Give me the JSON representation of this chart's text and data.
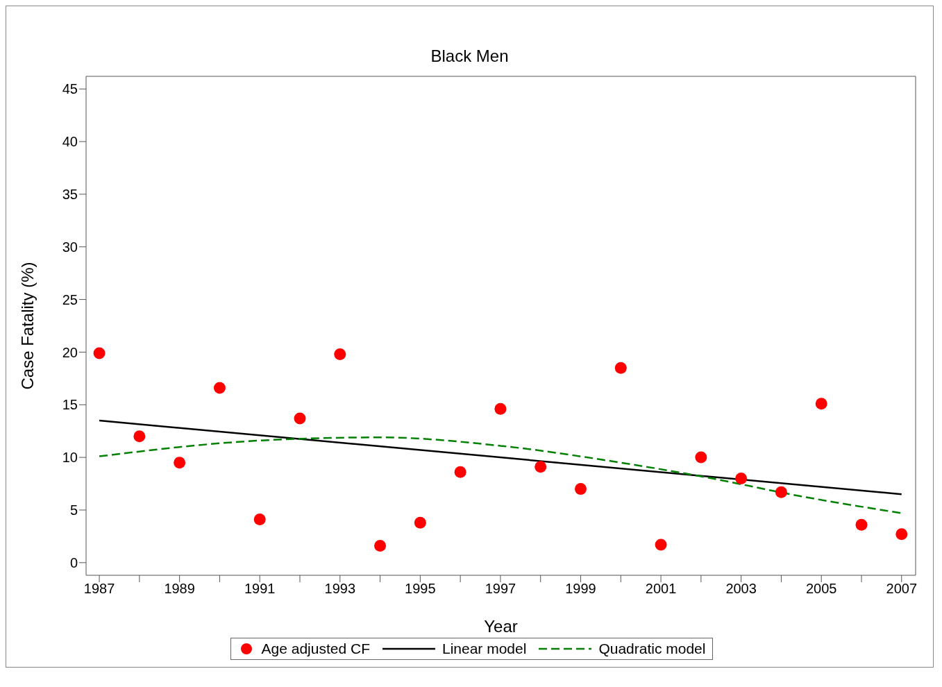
{
  "chart_data": {
    "type": "scatter",
    "title": "Black Men",
    "xlabel": "Year",
    "ylabel": "Case Fatality (%)",
    "xlim": [
      1986.67,
      2007.35
    ],
    "ylim": [
      -1.2,
      46.2
    ],
    "xticks": [
      1987,
      {
        "value": 1988,
        "label": null
      },
      1989,
      {
        "value": 1990,
        "label": null
      },
      1991,
      {
        "value": 1992,
        "label": null
      },
      1993,
      {
        "value": 1994,
        "label": null
      },
      1995,
      {
        "value": 1996,
        "label": null
      },
      1997,
      {
        "value": 1998,
        "label": null
      },
      1999,
      {
        "value": 2000,
        "label": null
      },
      2001,
      {
        "value": 2002,
        "label": null
      },
      2003,
      {
        "value": 2004,
        "label": null
      },
      2005,
      {
        "value": 2006,
        "label": null
      },
      2007
    ],
    "yticks": [
      0,
      5,
      10,
      15,
      20,
      25,
      30,
      35,
      40,
      45
    ],
    "grid": false,
    "legend": "bottom",
    "series": [
      {
        "name": "Age adjusted CF",
        "type": "scatter",
        "marker": "circle",
        "color": "#ff0000",
        "x": [
          1987,
          1988,
          1989,
          1990,
          1991,
          1992,
          1993,
          1994,
          1995,
          1996,
          1997,
          1998,
          1999,
          2000,
          2001,
          2002,
          2003,
          2004,
          2005,
          2006,
          2007
        ],
        "values": [
          19.9,
          12.0,
          9.5,
          16.6,
          4.1,
          13.7,
          19.8,
          1.6,
          3.8,
          8.6,
          14.6,
          9.1,
          7.0,
          18.5,
          1.7,
          10.0,
          8.0,
          6.7,
          15.1,
          3.6,
          2.7
        ]
      },
      {
        "name": "Linear model",
        "type": "line",
        "line_style": "solid",
        "color": "#000000",
        "x": [
          1987,
          2007
        ],
        "values": [
          13.5,
          6.5
        ]
      },
      {
        "name": "Quadratic model",
        "type": "line",
        "line_style": "dashed",
        "color": "#008000",
        "x": [
          1987,
          1991,
          1994,
          1997,
          2000,
          2002,
          2004.5,
          2007
        ],
        "values": [
          10.1,
          11.6,
          11.9,
          11.1,
          9.5,
          8.2,
          6.3,
          4.7
        ]
      }
    ]
  }
}
